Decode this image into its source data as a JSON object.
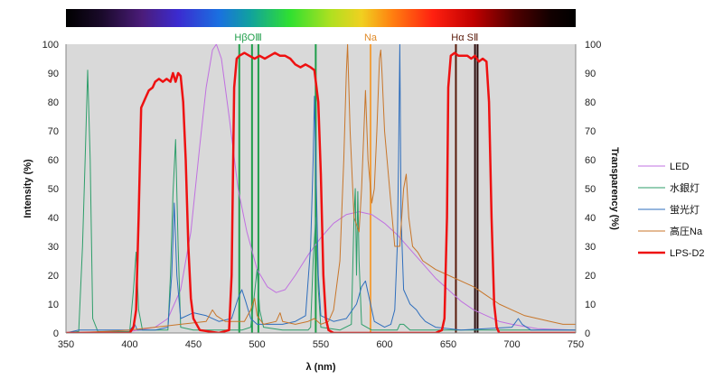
{
  "chart_data": {
    "type": "line",
    "xlabel": "λ (nm)",
    "ylabel_left": "Intensity (%)",
    "ylabel_right": "Transparency (%)",
    "xlim": [
      350,
      750
    ],
    "ylim": [
      0,
      100
    ],
    "x_ticks": [
      350,
      400,
      450,
      500,
      550,
      600,
      650,
      700,
      750
    ],
    "y_ticks": [
      0,
      10,
      20,
      30,
      40,
      50,
      60,
      70,
      80,
      90,
      100
    ],
    "plot_background": "#d9d9d9",
    "grid": false,
    "legend_position": "right",
    "spectrum_bar": true,
    "annotations": [
      {
        "text": "HβOⅢ",
        "x": 493,
        "color": "#1f9e4a"
      },
      {
        "text": "Na",
        "x": 589,
        "color": "#e08b2a"
      },
      {
        "text": "Hα SⅡ",
        "x": 663,
        "color": "#5a1a0a"
      }
    ],
    "reference_lines": [
      {
        "x": 486,
        "color": "#1f9e4a"
      },
      {
        "x": 496,
        "color": "#1f9e4a"
      },
      {
        "x": 501,
        "color": "#1f9e4a"
      },
      {
        "x": 546,
        "color": "#1f9e4a"
      },
      {
        "x": 589,
        "color": "#f0a040"
      },
      {
        "x": 656,
        "color": "#5a1a0a"
      },
      {
        "x": 671,
        "color": "#2a0a0a"
      },
      {
        "x": 673,
        "color": "#2a0a0a"
      }
    ],
    "series": [
      {
        "name": "LED",
        "color": "#c070e0",
        "width": 1,
        "points": [
          [
            350,
            0
          ],
          [
            400,
            0.5
          ],
          [
            420,
            2
          ],
          [
            430,
            5
          ],
          [
            440,
            15
          ],
          [
            448,
            35
          ],
          [
            455,
            65
          ],
          [
            460,
            85
          ],
          [
            465,
            98
          ],
          [
            468,
            100
          ],
          [
            472,
            95
          ],
          [
            478,
            75
          ],
          [
            485,
            50
          ],
          [
            492,
            35
          ],
          [
            500,
            22
          ],
          [
            508,
            16
          ],
          [
            515,
            14
          ],
          [
            522,
            15
          ],
          [
            530,
            20
          ],
          [
            540,
            27
          ],
          [
            550,
            33
          ],
          [
            560,
            38
          ],
          [
            570,
            41
          ],
          [
            580,
            42
          ],
          [
            590,
            41
          ],
          [
            600,
            38
          ],
          [
            610,
            34
          ],
          [
            620,
            29
          ],
          [
            630,
            24
          ],
          [
            640,
            19
          ],
          [
            650,
            15
          ],
          [
            660,
            11
          ],
          [
            670,
            8
          ],
          [
            680,
            6
          ],
          [
            690,
            4
          ],
          [
            700,
            3
          ],
          [
            720,
            1.5
          ],
          [
            750,
            1
          ]
        ]
      },
      {
        "name": "水銀灯",
        "color": "#2e9e6a",
        "width": 1,
        "points": [
          [
            350,
            0
          ],
          [
            360,
            0.5
          ],
          [
            363,
            30
          ],
          [
            365,
            60
          ],
          [
            367,
            91
          ],
          [
            369,
            60
          ],
          [
            371,
            5
          ],
          [
            375,
            0.5
          ],
          [
            380,
            0.5
          ],
          [
            400,
            0.5
          ],
          [
            403,
            15
          ],
          [
            405,
            28
          ],
          [
            407,
            8
          ],
          [
            410,
            1
          ],
          [
            430,
            1
          ],
          [
            432,
            20
          ],
          [
            434,
            48
          ],
          [
            436,
            67
          ],
          [
            438,
            30
          ],
          [
            440,
            2
          ],
          [
            450,
            1
          ],
          [
            480,
            1
          ],
          [
            488,
            1
          ],
          [
            495,
            2
          ],
          [
            497,
            10
          ],
          [
            500,
            22
          ],
          [
            502,
            8
          ],
          [
            505,
            2
          ],
          [
            520,
            1
          ],
          [
            540,
            1
          ],
          [
            542,
            2
          ],
          [
            544,
            25
          ],
          [
            546,
            40
          ],
          [
            548,
            15
          ],
          [
            550,
            2
          ],
          [
            565,
            1
          ],
          [
            574,
            3
          ],
          [
            576,
            40
          ],
          [
            577,
            50
          ],
          [
            578,
            20
          ],
          [
            579,
            49
          ],
          [
            580,
            25
          ],
          [
            582,
            3
          ],
          [
            590,
            1
          ],
          [
            610,
            1
          ],
          [
            612,
            3
          ],
          [
            615,
            3
          ],
          [
            620,
            1
          ],
          [
            700,
            1
          ],
          [
            750,
            1
          ]
        ]
      },
      {
        "name": "蛍光灯",
        "color": "#2e6ebd",
        "width": 1,
        "points": [
          [
            350,
            0
          ],
          [
            360,
            1
          ],
          [
            380,
            1
          ],
          [
            400,
            1
          ],
          [
            404,
            3
          ],
          [
            406,
            1
          ],
          [
            420,
            1
          ],
          [
            430,
            2
          ],
          [
            433,
            20
          ],
          [
            435,
            45
          ],
          [
            437,
            20
          ],
          [
            440,
            5
          ],
          [
            450,
            7
          ],
          [
            460,
            6
          ],
          [
            470,
            4
          ],
          [
            480,
            5
          ],
          [
            485,
            12
          ],
          [
            488,
            15
          ],
          [
            491,
            11
          ],
          [
            495,
            5
          ],
          [
            500,
            3
          ],
          [
            510,
            3
          ],
          [
            520,
            3
          ],
          [
            530,
            4
          ],
          [
            538,
            6
          ],
          [
            542,
            30
          ],
          [
            544,
            60
          ],
          [
            545,
            82
          ],
          [
            546,
            60
          ],
          [
            548,
            20
          ],
          [
            550,
            6
          ],
          [
            560,
            4
          ],
          [
            570,
            5
          ],
          [
            578,
            10
          ],
          [
            582,
            16
          ],
          [
            585,
            18
          ],
          [
            588,
            12
          ],
          [
            592,
            4
          ],
          [
            600,
            2
          ],
          [
            605,
            3
          ],
          [
            608,
            8
          ],
          [
            610,
            30
          ],
          [
            611,
            60
          ],
          [
            612,
            100
          ],
          [
            613,
            40
          ],
          [
            615,
            15
          ],
          [
            618,
            12
          ],
          [
            620,
            10
          ],
          [
            625,
            8
          ],
          [
            628,
            6
          ],
          [
            632,
            4
          ],
          [
            640,
            2
          ],
          [
            660,
            1
          ],
          [
            700,
            2
          ],
          [
            705,
            5
          ],
          [
            708,
            3
          ],
          [
            715,
            1
          ],
          [
            750,
            1
          ]
        ]
      },
      {
        "name": "高圧Na",
        "color": "#c8762a",
        "width": 1,
        "points": [
          [
            350,
            0
          ],
          [
            380,
            0.5
          ],
          [
            400,
            1
          ],
          [
            420,
            2
          ],
          [
            440,
            3
          ],
          [
            460,
            4
          ],
          [
            465,
            8
          ],
          [
            468,
            6
          ],
          [
            475,
            4
          ],
          [
            490,
            4
          ],
          [
            495,
            8
          ],
          [
            498,
            12
          ],
          [
            500,
            6
          ],
          [
            505,
            3
          ],
          [
            515,
            4
          ],
          [
            518,
            7
          ],
          [
            520,
            4
          ],
          [
            530,
            3
          ],
          [
            540,
            4
          ],
          [
            545,
            5
          ],
          [
            550,
            3
          ],
          [
            556,
            4
          ],
          [
            560,
            8
          ],
          [
            565,
            25
          ],
          [
            568,
            60
          ],
          [
            570,
            90
          ],
          [
            571,
            100
          ],
          [
            573,
            70
          ],
          [
            576,
            40
          ],
          [
            580,
            35
          ],
          [
            582,
            50
          ],
          [
            584,
            72
          ],
          [
            585,
            84
          ],
          [
            587,
            60
          ],
          [
            590,
            45
          ],
          [
            592,
            50
          ],
          [
            594,
            70
          ],
          [
            596,
            95
          ],
          [
            597,
            98
          ],
          [
            598,
            90
          ],
          [
            600,
            70
          ],
          [
            603,
            55
          ],
          [
            605,
            45
          ],
          [
            608,
            30
          ],
          [
            612,
            30
          ],
          [
            615,
            50
          ],
          [
            617,
            55
          ],
          [
            619,
            40
          ],
          [
            622,
            30
          ],
          [
            626,
            28
          ],
          [
            630,
            25
          ],
          [
            640,
            22
          ],
          [
            650,
            20
          ],
          [
            660,
            18
          ],
          [
            670,
            16
          ],
          [
            680,
            13
          ],
          [
            690,
            10
          ],
          [
            700,
            8
          ],
          [
            710,
            6
          ],
          [
            720,
            5
          ],
          [
            730,
            4
          ],
          [
            740,
            3
          ],
          [
            750,
            3
          ]
        ]
      },
      {
        "name": "LPS-D2",
        "color": "#ee1111",
        "width": 2.5,
        "points": [
          [
            350,
            0
          ],
          [
            400,
            0
          ],
          [
            403,
            2
          ],
          [
            405,
            8
          ],
          [
            407,
            40
          ],
          [
            409,
            78
          ],
          [
            411,
            80
          ],
          [
            413,
            82
          ],
          [
            415,
            84
          ],
          [
            418,
            85
          ],
          [
            420,
            87
          ],
          [
            423,
            88
          ],
          [
            426,
            87
          ],
          [
            429,
            88
          ],
          [
            432,
            87
          ],
          [
            434,
            90
          ],
          [
            436,
            87
          ],
          [
            438,
            90
          ],
          [
            440,
            89
          ],
          [
            442,
            80
          ],
          [
            444,
            60
          ],
          [
            446,
            30
          ],
          [
            448,
            12
          ],
          [
            450,
            5
          ],
          [
            455,
            1
          ],
          [
            470,
            0
          ],
          [
            478,
            1
          ],
          [
            480,
            20
          ],
          [
            482,
            85
          ],
          [
            484,
            95
          ],
          [
            486,
            96
          ],
          [
            490,
            97
          ],
          [
            494,
            96
          ],
          [
            498,
            95
          ],
          [
            502,
            96
          ],
          [
            506,
            95
          ],
          [
            510,
            96
          ],
          [
            514,
            97
          ],
          [
            518,
            96
          ],
          [
            522,
            96
          ],
          [
            526,
            95
          ],
          [
            530,
            93
          ],
          [
            534,
            92
          ],
          [
            538,
            93
          ],
          [
            542,
            92
          ],
          [
            545,
            91
          ],
          [
            548,
            80
          ],
          [
            550,
            55
          ],
          [
            552,
            20
          ],
          [
            554,
            5
          ],
          [
            556,
            1
          ],
          [
            560,
            0
          ],
          [
            640,
            0
          ],
          [
            645,
            1
          ],
          [
            647,
            5
          ],
          [
            649,
            40
          ],
          [
            650,
            85
          ],
          [
            652,
            96
          ],
          [
            655,
            97
          ],
          [
            658,
            96
          ],
          [
            662,
            96
          ],
          [
            665,
            96
          ],
          [
            668,
            95
          ],
          [
            671,
            96
          ],
          [
            674,
            94
          ],
          [
            677,
            95
          ],
          [
            680,
            94
          ],
          [
            682,
            80
          ],
          [
            684,
            40
          ],
          [
            686,
            10
          ],
          [
            688,
            2
          ],
          [
            690,
            0
          ],
          [
            750,
            0
          ]
        ]
      }
    ]
  }
}
